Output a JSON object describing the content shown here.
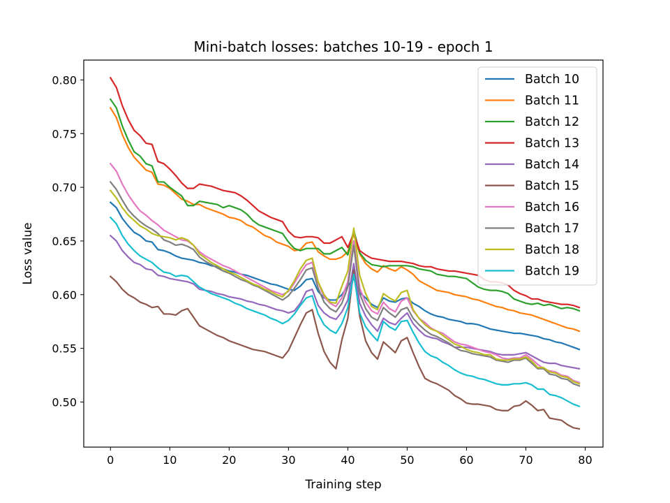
{
  "chart_data": {
    "type": "line",
    "title": "Mini-batch losses: batches 10-19 - epoch 1",
    "xlabel": "Training step",
    "ylabel": "Loss value",
    "xlim": [
      -4.5,
      83
    ],
    "ylim": [
      0.458,
      0.8185
    ],
    "xticks": [
      0,
      10,
      20,
      30,
      40,
      50,
      60,
      70,
      80
    ],
    "xtick_labels": [
      "0",
      "10",
      "20",
      "30",
      "40",
      "50",
      "60",
      "70",
      "80"
    ],
    "yticks": [
      0.5,
      0.55,
      0.6,
      0.65,
      0.7,
      0.75,
      0.8
    ],
    "ytick_labels": [
      "0.50",
      "0.55",
      "0.60",
      "0.65",
      "0.70",
      "0.75",
      "0.80"
    ],
    "legend_position": "top-right",
    "grid": false,
    "x": [
      0,
      1,
      2,
      3,
      4,
      5,
      6,
      7,
      8,
      9,
      10,
      11,
      12,
      13,
      14,
      15,
      16,
      17,
      18,
      19,
      20,
      21,
      22,
      23,
      24,
      25,
      26,
      27,
      28,
      29,
      30,
      31,
      32,
      33,
      34,
      35,
      36,
      37,
      38,
      39,
      40,
      41,
      42,
      43,
      44,
      45,
      46,
      47,
      48,
      49,
      50,
      51,
      52,
      53,
      54,
      55,
      56,
      57,
      58,
      59,
      60,
      61,
      62,
      63,
      64,
      65,
      66,
      67,
      68,
      69,
      70,
      71,
      72,
      73,
      74,
      75,
      76,
      77,
      78,
      79
    ],
    "series": [
      {
        "name": "Batch 10",
        "color": "#1f77b4",
        "values": [
          0.686,
          0.681,
          0.671,
          0.664,
          0.658,
          0.655,
          0.65,
          0.649,
          0.642,
          0.641,
          0.639,
          0.636,
          0.634,
          0.633,
          0.632,
          0.63,
          0.629,
          0.627,
          0.626,
          0.624,
          0.622,
          0.621,
          0.619,
          0.618,
          0.616,
          0.614,
          0.612,
          0.61,
          0.609,
          0.607,
          0.605,
          0.604,
          0.608,
          0.614,
          0.615,
          0.603,
          0.597,
          0.595,
          0.595,
          0.6,
          0.608,
          0.615,
          0.602,
          0.597,
          0.591,
          0.588,
          0.597,
          0.594,
          0.593,
          0.596,
          0.597,
          0.592,
          0.589,
          0.585,
          0.582,
          0.58,
          0.579,
          0.577,
          0.576,
          0.575,
          0.573,
          0.573,
          0.572,
          0.57,
          0.568,
          0.567,
          0.566,
          0.565,
          0.564,
          0.564,
          0.563,
          0.562,
          0.561,
          0.559,
          0.558,
          0.556,
          0.555,
          0.553,
          0.551,
          0.549
        ]
      },
      {
        "name": "Batch 11",
        "color": "#ff7f0e",
        "values": [
          0.774,
          0.765,
          0.749,
          0.737,
          0.728,
          0.722,
          0.716,
          0.714,
          0.703,
          0.702,
          0.699,
          0.694,
          0.689,
          0.687,
          0.684,
          0.684,
          0.681,
          0.679,
          0.677,
          0.675,
          0.672,
          0.671,
          0.669,
          0.665,
          0.663,
          0.659,
          0.655,
          0.653,
          0.649,
          0.647,
          0.645,
          0.641,
          0.642,
          0.648,
          0.649,
          0.64,
          0.636,
          0.633,
          0.633,
          0.635,
          0.64,
          0.656,
          0.638,
          0.629,
          0.624,
          0.621,
          0.627,
          0.624,
          0.622,
          0.626,
          0.623,
          0.619,
          0.613,
          0.61,
          0.607,
          0.604,
          0.603,
          0.602,
          0.6,
          0.599,
          0.598,
          0.596,
          0.595,
          0.593,
          0.591,
          0.589,
          0.588,
          0.586,
          0.585,
          0.583,
          0.582,
          0.581,
          0.579,
          0.577,
          0.575,
          0.573,
          0.571,
          0.569,
          0.568,
          0.566
        ]
      },
      {
        "name": "Batch 12",
        "color": "#2ca02c",
        "values": [
          0.782,
          0.774,
          0.757,
          0.744,
          0.733,
          0.729,
          0.722,
          0.72,
          0.705,
          0.705,
          0.7,
          0.696,
          0.692,
          0.683,
          0.683,
          0.687,
          0.686,
          0.685,
          0.684,
          0.681,
          0.683,
          0.681,
          0.679,
          0.675,
          0.669,
          0.665,
          0.663,
          0.661,
          0.659,
          0.657,
          0.649,
          0.643,
          0.641,
          0.643,
          0.643,
          0.643,
          0.638,
          0.638,
          0.641,
          0.644,
          0.637,
          0.66,
          0.639,
          0.632,
          0.628,
          0.627,
          0.626,
          0.627,
          0.627,
          0.627,
          0.627,
          0.626,
          0.624,
          0.623,
          0.622,
          0.619,
          0.618,
          0.617,
          0.617,
          0.616,
          0.615,
          0.611,
          0.607,
          0.605,
          0.604,
          0.604,
          0.603,
          0.601,
          0.596,
          0.594,
          0.592,
          0.591,
          0.592,
          0.59,
          0.591,
          0.589,
          0.587,
          0.588,
          0.587,
          0.585
        ]
      },
      {
        "name": "Batch 13",
        "color": "#d62728",
        "values": [
          0.802,
          0.793,
          0.776,
          0.763,
          0.753,
          0.748,
          0.741,
          0.74,
          0.724,
          0.722,
          0.717,
          0.711,
          0.704,
          0.699,
          0.699,
          0.703,
          0.702,
          0.701,
          0.699,
          0.697,
          0.696,
          0.695,
          0.692,
          0.688,
          0.683,
          0.678,
          0.675,
          0.672,
          0.67,
          0.668,
          0.659,
          0.654,
          0.653,
          0.654,
          0.654,
          0.653,
          0.648,
          0.648,
          0.651,
          0.654,
          0.644,
          0.657,
          0.641,
          0.637,
          0.634,
          0.633,
          0.632,
          0.631,
          0.631,
          0.631,
          0.63,
          0.629,
          0.627,
          0.626,
          0.626,
          0.624,
          0.623,
          0.622,
          0.622,
          0.621,
          0.62,
          0.619,
          0.618,
          0.614,
          0.612,
          0.612,
          0.611,
          0.609,
          0.604,
          0.601,
          0.599,
          0.596,
          0.596,
          0.594,
          0.593,
          0.592,
          0.591,
          0.591,
          0.59,
          0.588
        ]
      },
      {
        "name": "Batch 14",
        "color": "#9467bd",
        "values": [
          0.655,
          0.65,
          0.641,
          0.635,
          0.63,
          0.628,
          0.624,
          0.623,
          0.618,
          0.617,
          0.615,
          0.614,
          0.613,
          0.612,
          0.61,
          0.605,
          0.604,
          0.603,
          0.601,
          0.6,
          0.598,
          0.597,
          0.596,
          0.594,
          0.593,
          0.591,
          0.59,
          0.588,
          0.586,
          0.585,
          0.583,
          0.585,
          0.592,
          0.603,
          0.605,
          0.59,
          0.583,
          0.579,
          0.577,
          0.584,
          0.595,
          0.629,
          0.592,
          0.58,
          0.572,
          0.566,
          0.578,
          0.574,
          0.572,
          0.578,
          0.583,
          0.573,
          0.567,
          0.562,
          0.56,
          0.559,
          0.556,
          0.554,
          0.551,
          0.551,
          0.551,
          0.55,
          0.549,
          0.548,
          0.547,
          0.545,
          0.544,
          0.544,
          0.544,
          0.545,
          0.546,
          0.543,
          0.54,
          0.537,
          0.536,
          0.536,
          0.534,
          0.533,
          0.532,
          0.531
        ]
      },
      {
        "name": "Batch 15",
        "color": "#8c564b",
        "values": [
          0.617,
          0.612,
          0.605,
          0.6,
          0.597,
          0.593,
          0.591,
          0.588,
          0.589,
          0.582,
          0.582,
          0.581,
          0.585,
          0.587,
          0.579,
          0.571,
          0.568,
          0.565,
          0.562,
          0.56,
          0.557,
          0.555,
          0.553,
          0.551,
          0.549,
          0.548,
          0.547,
          0.545,
          0.543,
          0.541,
          0.548,
          0.56,
          0.572,
          0.583,
          0.586,
          0.564,
          0.547,
          0.537,
          0.531,
          0.558,
          0.578,
          0.623,
          0.58,
          0.557,
          0.546,
          0.54,
          0.556,
          0.551,
          0.546,
          0.557,
          0.56,
          0.546,
          0.533,
          0.522,
          0.519,
          0.517,
          0.514,
          0.511,
          0.506,
          0.503,
          0.499,
          0.498,
          0.498,
          0.497,
          0.496,
          0.493,
          0.492,
          0.492,
          0.496,
          0.497,
          0.501,
          0.497,
          0.492,
          0.493,
          0.485,
          0.484,
          0.483,
          0.479,
          0.476,
          0.475
        ]
      },
      {
        "name": "Batch 16",
        "color": "#e377c2",
        "values": [
          0.722,
          0.715,
          0.703,
          0.693,
          0.685,
          0.678,
          0.674,
          0.669,
          0.665,
          0.66,
          0.657,
          0.654,
          0.651,
          0.65,
          0.646,
          0.64,
          0.636,
          0.633,
          0.63,
          0.627,
          0.625,
          0.622,
          0.619,
          0.616,
          0.613,
          0.61,
          0.607,
          0.604,
          0.602,
          0.6,
          0.603,
          0.611,
          0.62,
          0.628,
          0.63,
          0.611,
          0.598,
          0.592,
          0.589,
          0.597,
          0.612,
          0.65,
          0.606,
          0.593,
          0.585,
          0.582,
          0.593,
          0.587,
          0.584,
          0.594,
          0.597,
          0.585,
          0.578,
          0.574,
          0.569,
          0.566,
          0.564,
          0.56,
          0.556,
          0.554,
          0.553,
          0.551,
          0.549,
          0.547,
          0.546,
          0.544,
          0.541,
          0.54,
          0.541,
          0.541,
          0.544,
          0.54,
          0.535,
          0.531,
          0.529,
          0.528,
          0.525,
          0.524,
          0.52,
          0.518
        ]
      },
      {
        "name": "Batch 17",
        "color": "#7f7f7f",
        "values": [
          0.705,
          0.698,
          0.688,
          0.679,
          0.673,
          0.668,
          0.664,
          0.661,
          0.657,
          0.651,
          0.649,
          0.646,
          0.647,
          0.645,
          0.642,
          0.635,
          0.631,
          0.628,
          0.625,
          0.622,
          0.62,
          0.617,
          0.614,
          0.612,
          0.609,
          0.607,
          0.604,
          0.601,
          0.598,
          0.595,
          0.599,
          0.606,
          0.614,
          0.623,
          0.625,
          0.606,
          0.593,
          0.587,
          0.584,
          0.592,
          0.607,
          0.646,
          0.601,
          0.587,
          0.579,
          0.576,
          0.588,
          0.583,
          0.579,
          0.586,
          0.588,
          0.578,
          0.572,
          0.567,
          0.563,
          0.561,
          0.558,
          0.555,
          0.551,
          0.548,
          0.547,
          0.545,
          0.544,
          0.543,
          0.542,
          0.539,
          0.538,
          0.537,
          0.539,
          0.539,
          0.541,
          0.536,
          0.531,
          0.531,
          0.526,
          0.525,
          0.522,
          0.521,
          0.517,
          0.515
        ]
      },
      {
        "name": "Batch 18",
        "color": "#bcbd22",
        "values": [
          0.697,
          0.69,
          0.681,
          0.674,
          0.669,
          0.664,
          0.661,
          0.657,
          0.655,
          0.654,
          0.653,
          0.651,
          0.653,
          0.651,
          0.646,
          0.638,
          0.634,
          0.63,
          0.627,
          0.624,
          0.621,
          0.619,
          0.616,
          0.613,
          0.61,
          0.608,
          0.605,
          0.603,
          0.6,
          0.598,
          0.604,
          0.613,
          0.624,
          0.632,
          0.634,
          0.612,
          0.6,
          0.593,
          0.592,
          0.608,
          0.622,
          0.662,
          0.618,
          0.601,
          0.589,
          0.586,
          0.601,
          0.597,
          0.594,
          0.602,
          0.604,
          0.586,
          0.578,
          0.572,
          0.568,
          0.566,
          0.562,
          0.558,
          0.554,
          0.552,
          0.549,
          0.547,
          0.546,
          0.544,
          0.544,
          0.54,
          0.539,
          0.539,
          0.54,
          0.54,
          0.542,
          0.538,
          0.532,
          0.532,
          0.528,
          0.527,
          0.524,
          0.523,
          0.519,
          0.517
        ]
      },
      {
        "name": "Batch 19",
        "color": "#17becf",
        "values": [
          0.672,
          0.666,
          0.655,
          0.647,
          0.641,
          0.636,
          0.633,
          0.63,
          0.625,
          0.621,
          0.62,
          0.617,
          0.618,
          0.617,
          0.612,
          0.607,
          0.604,
          0.601,
          0.599,
          0.597,
          0.595,
          0.592,
          0.59,
          0.587,
          0.585,
          0.583,
          0.581,
          0.578,
          0.576,
          0.573,
          0.576,
          0.582,
          0.59,
          0.597,
          0.599,
          0.582,
          0.572,
          0.567,
          0.564,
          0.573,
          0.588,
          0.619,
          0.583,
          0.57,
          0.563,
          0.557,
          0.575,
          0.57,
          0.567,
          0.575,
          0.576,
          0.565,
          0.555,
          0.547,
          0.543,
          0.541,
          0.537,
          0.534,
          0.53,
          0.527,
          0.525,
          0.524,
          0.522,
          0.521,
          0.519,
          0.517,
          0.516,
          0.516,
          0.517,
          0.517,
          0.518,
          0.516,
          0.512,
          0.512,
          0.507,
          0.506,
          0.504,
          0.501,
          0.498,
          0.496
        ]
      }
    ]
  }
}
